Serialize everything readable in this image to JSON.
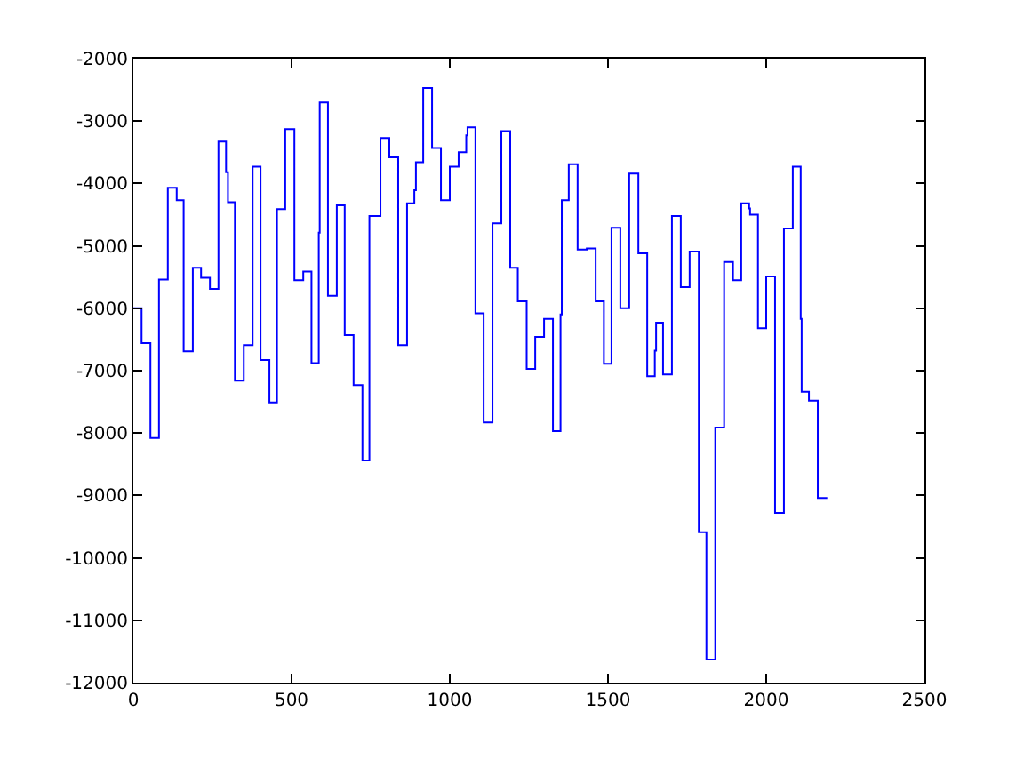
{
  "chart_data": {
    "type": "step",
    "x": [
      0,
      26,
      54,
      81,
      109,
      137,
      159,
      188,
      214,
      242,
      269,
      293,
      299,
      321,
      349,
      377,
      402,
      430,
      454,
      480,
      509,
      537,
      563,
      586,
      589,
      615,
      643,
      668,
      696,
      724,
      746,
      781,
      809,
      837,
      865,
      888,
      893,
      916,
      944,
      972,
      1000,
      1028,
      1052,
      1056,
      1081,
      1107,
      1135,
      1163,
      1191,
      1215,
      1243,
      1270,
      1298,
      1326,
      1350,
      1354,
      1376,
      1404,
      1433,
      1461,
      1487,
      1511,
      1539,
      1567,
      1596,
      1624,
      1648,
      1652,
      1674,
      1702,
      1730,
      1758,
      1787,
      1811,
      1839,
      1867,
      1895,
      1921,
      1946,
      1949,
      1974,
      2000,
      2028,
      2056,
      2084,
      2109,
      2112,
      2135,
      2163,
      2193
    ],
    "series": [
      {
        "color": "#0000ff",
        "values": [
          -6000,
          -6560,
          -8080,
          -5540,
          -4070,
          -4270,
          -6690,
          -5350,
          -5510,
          -5690,
          -3330,
          -3820,
          -4300,
          -7160,
          -6590,
          -3730,
          -6830,
          -7510,
          -4410,
          -3130,
          -5550,
          -5410,
          -6880,
          -4790,
          -2700,
          -5800,
          -4350,
          -6430,
          -7230,
          -8440,
          -4520,
          -3270,
          -3580,
          -6590,
          -4320,
          -4110,
          -3660,
          -2470,
          -3430,
          -4270,
          -3730,
          -3500,
          -3230,
          -3100,
          -6080,
          -7830,
          -4640,
          -3160,
          -5350,
          -5890,
          -6970,
          -6460,
          -6170,
          -7970,
          -6100,
          -4270,
          -3690,
          -5060,
          -5040,
          -5890,
          -6890,
          -4710,
          -6000,
          -3840,
          -5120,
          -7090,
          -6680,
          -6230,
          -7060,
          -4520,
          -5660,
          -5090,
          -9590,
          -11630,
          -7910,
          -5260,
          -5550,
          -4320,
          -4400,
          -4500,
          -6320,
          -5490,
          -9280,
          -4720,
          -3730,
          -6170,
          -7340,
          -7480,
          -9040,
          -9040
        ]
      }
    ],
    "xlim": [
      0,
      2500
    ],
    "xticks": [
      0,
      500,
      1000,
      1500,
      2000,
      2500
    ],
    "ylim": [
      -12000,
      -2000
    ],
    "yticks": [
      -12000,
      -11000,
      -10000,
      -9000,
      -8000,
      -7000,
      -6000,
      -5000,
      -4000,
      -3000,
      -2000
    ],
    "grid": false,
    "marker": "none",
    "line_style": "solid"
  }
}
